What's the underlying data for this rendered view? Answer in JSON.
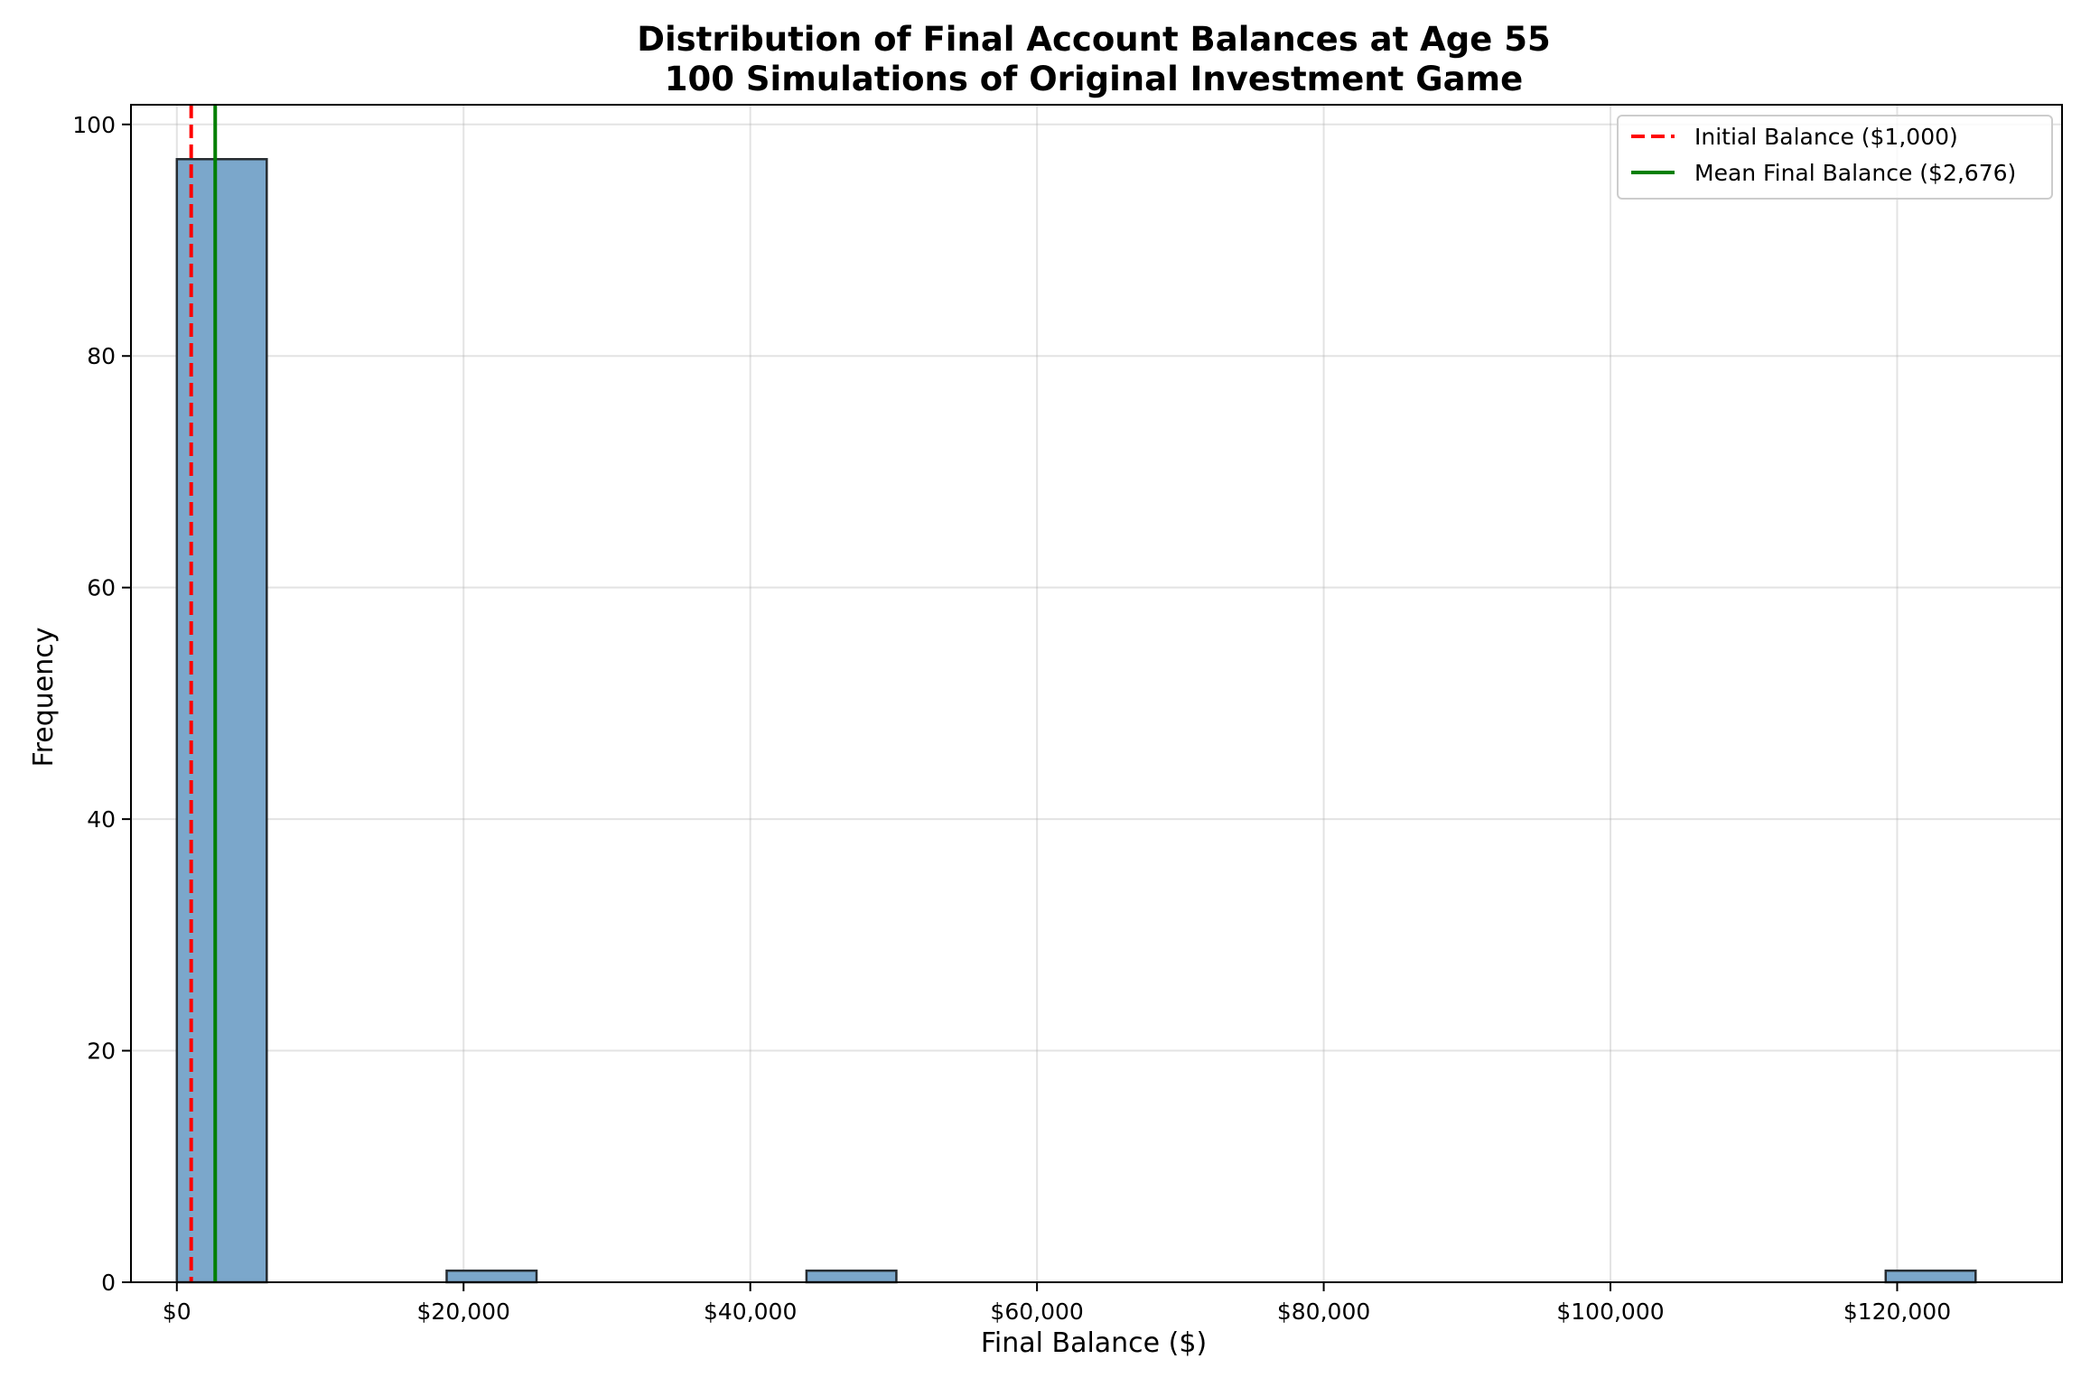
{
  "chart_data": {
    "type": "bar",
    "title_line1": "Distribution of Final Account Balances at Age 55",
    "title_line2": "100 Simulations of Original Investment Game",
    "xlabel": "Final Balance ($)",
    "ylabel": "Frequency",
    "xlim": [
      -3200,
      131500
    ],
    "ylim": [
      0,
      101.7
    ],
    "x_ticks": [
      0,
      20000,
      40000,
      60000,
      80000,
      100000,
      120000
    ],
    "x_tick_labels": [
      "$0",
      "$20,000",
      "$40,000",
      "$60,000",
      "$80,000",
      "$100,000",
      "$120,000"
    ],
    "y_ticks": [
      0,
      20,
      40,
      60,
      80,
      100
    ],
    "y_tick_labels": [
      "0",
      "20",
      "40",
      "60",
      "80",
      "100"
    ],
    "grid": true,
    "bins": [
      {
        "start": 0,
        "end": 6270,
        "count": 97
      },
      {
        "start": 18820,
        "end": 25090,
        "count": 1
      },
      {
        "start": 43920,
        "end": 50190,
        "count": 1
      },
      {
        "start": 119200,
        "end": 125470,
        "count": 1
      }
    ],
    "bar_color": "#7ba7cb",
    "bar_edge_color": "#262c31",
    "reference_lines": [
      {
        "label": "Initial Balance ($1,000)",
        "value": 1000,
        "color": "#ff0000",
        "style": "dashed"
      },
      {
        "label": "Mean Final Balance ($2,676)",
        "value": 2676,
        "color": "#007f00",
        "style": "solid"
      }
    ],
    "legend_position": "top-right"
  }
}
